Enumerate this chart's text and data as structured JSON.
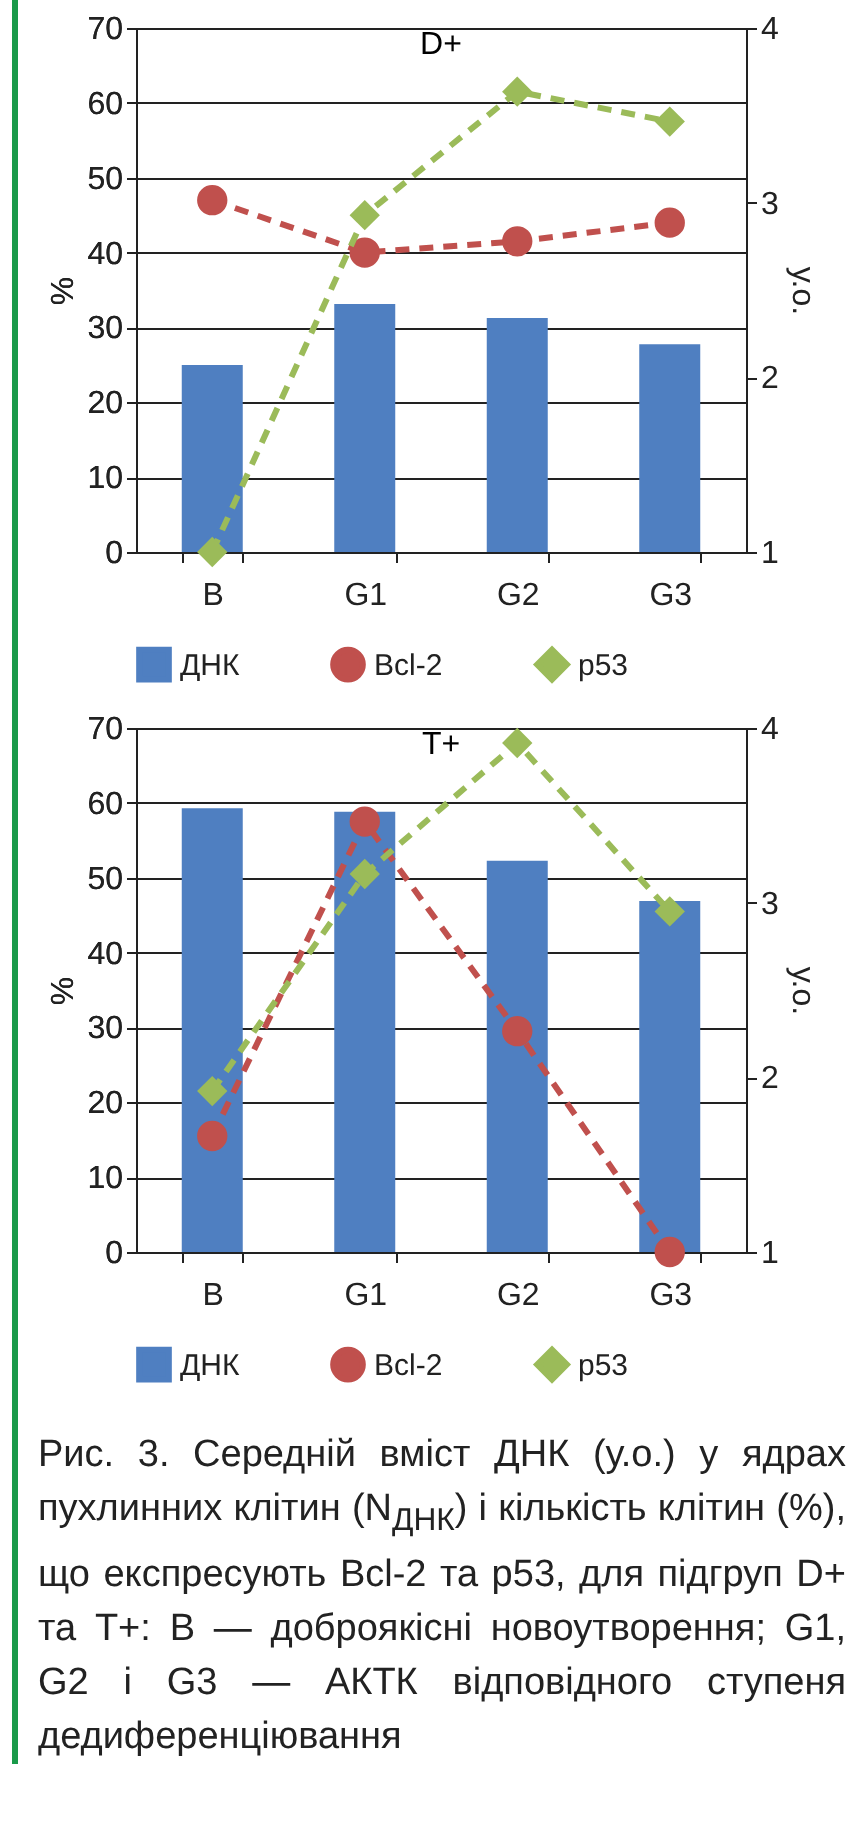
{
  "chart_data": [
    {
      "type": "bar",
      "title": "D+",
      "categories": [
        "B",
        "G1",
        "G2",
        "G3"
      ],
      "ylabel": "%",
      "y2label": "у.о.",
      "ylim": [
        0,
        70
      ],
      "yticks": [
        0,
        10,
        20,
        30,
        40,
        50,
        60,
        70
      ],
      "y2lim": [
        1,
        4
      ],
      "y2ticks": [
        1,
        2,
        3,
        4
      ],
      "grid": "y",
      "legend": "bottom",
      "line_style": "dashed",
      "series": [
        {
          "name": "ДНК",
          "color": "#4f7fc1",
          "axis": "y2",
          "values": [
            2.07,
            2.42,
            2.34,
            2.19
          ]
        },
        {
          "name": "Bcl-2",
          "type": "line",
          "marker": "circle",
          "color": "#c0504d",
          "values": [
            47,
            40,
            41.5,
            44
          ]
        },
        {
          "name": "p53",
          "type": "line",
          "marker": "diamond",
          "color": "#9bbb59",
          "values": [
            0,
            45,
            61.5,
            57.5
          ]
        }
      ]
    },
    {
      "type": "bar",
      "title": "T+",
      "categories": [
        "B",
        "G1",
        "G2",
        "G3"
      ],
      "ylabel": "%",
      "y2label": "у.о.",
      "ylim": [
        0,
        70
      ],
      "yticks": [
        0,
        10,
        20,
        30,
        40,
        50,
        60,
        70
      ],
      "y2lim": [
        1,
        4
      ],
      "y2ticks": [
        1,
        2,
        3,
        4
      ],
      "grid": "y",
      "legend": "bottom",
      "line_style": "dashed",
      "series": [
        {
          "name": "ДНК",
          "color": "#4f7fc1",
          "axis": "y2",
          "values": [
            3.54,
            3.52,
            3.24,
            3.01
          ]
        },
        {
          "name": "Bcl-2",
          "type": "line",
          "marker": "circle",
          "color": "#c0504d",
          "values": [
            15.5,
            57.5,
            29.5,
            0
          ]
        },
        {
          "name": "p53",
          "type": "line",
          "marker": "diamond",
          "color": "#9bbb59",
          "values": [
            21.5,
            50.5,
            68,
            45.5
          ]
        }
      ],
      "annotations": [
        "Рис. 3. Середній вміст ДНК (у.о.) у ядрах пухлинних клітин (N$_{ДНК}$) і кількість клітин (%), що експресують Bcl-2 та p53, для підгруп D+ та T+: B — доброякісні новоутворення; G1, G2 і G3 — АКТК відповідного ступеня дедиференціювання"
      ]
    }
  ]
}
